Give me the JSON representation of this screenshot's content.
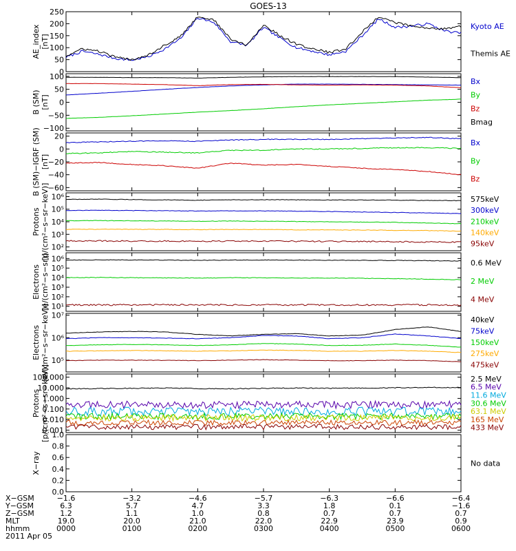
{
  "title": "GOES-13",
  "chart_data": [
    {
      "type": "line",
      "ylabel": [
        "AE_index",
        "[nT]"
      ],
      "ylim": [
        0,
        250
      ],
      "yscale": "linear",
      "yticks": [
        0,
        50,
        100,
        150,
        200,
        250
      ],
      "ytick_labels": [
        "0",
        "50",
        "100",
        "150",
        "200",
        "250"
      ],
      "series": [
        {
          "name": "Kyoto AE",
          "color": "#0000cc",
          "noise": 5,
          "values": [
            60,
            85,
            72,
            55,
            48,
            62,
            95,
            140,
            225,
            205,
            125,
            110,
            185,
            140,
            100,
            85,
            70,
            85,
            150,
            220,
            185,
            190,
            200,
            170,
            160
          ]
        },
        {
          "name": "Themis AE",
          "color": "#000000",
          "noise": 5,
          "values": [
            65,
            95,
            85,
            60,
            50,
            70,
            110,
            150,
            230,
            215,
            135,
            110,
            195,
            150,
            115,
            95,
            80,
            95,
            165,
            230,
            205,
            190,
            180,
            180,
            190
          ]
        }
      ]
    },
    {
      "type": "line",
      "ylabel": [
        "B (SM)",
        "[nT]"
      ],
      "ylim": [
        -110,
        110
      ],
      "yscale": "linear",
      "yticks": [
        -100,
        -50,
        0,
        50,
        100
      ],
      "ytick_labels": [
        "−100",
        "−50",
        "0",
        "50",
        "100"
      ],
      "series": [
        {
          "name": "Bx",
          "color": "#0000cc",
          "noise": 0.4,
          "values": [
            28,
            35,
            42,
            50,
            57,
            63,
            67,
            70,
            70,
            69,
            68,
            67,
            66
          ]
        },
        {
          "name": "By",
          "color": "#00cc00",
          "noise": 0.4,
          "values": [
            -62,
            -58,
            -52,
            -45,
            -38,
            -32,
            -25,
            -17,
            -10,
            -4,
            2,
            8,
            12
          ]
        },
        {
          "name": "Bz",
          "color": "#cc0000",
          "noise": 0.4,
          "values": [
            72,
            72,
            70,
            68,
            64,
            68,
            69,
            67,
            66,
            67,
            66,
            63,
            56
          ]
        },
        {
          "name": "Bmag",
          "color": "#000000",
          "noise": 0.4,
          "values": [
            96,
            96,
            95,
            95,
            93,
            96,
            98,
            99,
            99,
            99,
            99,
            97,
            95
          ]
        }
      ]
    },
    {
      "type": "line",
      "ylabel": [
        "B (SM)−IGRF (SM)",
        "[nT]"
      ],
      "ylim": [
        -65,
        25
      ],
      "yscale": "linear",
      "yticks": [
        -60,
        -40,
        -20,
        0,
        20
      ],
      "ytick_labels": [
        "−60",
        "−40",
        "−20",
        "0",
        "20"
      ],
      "series": [
        {
          "name": "Bx",
          "color": "#0000cc",
          "noise": 0.6,
          "values": [
            10,
            11,
            12,
            13,
            12,
            14,
            15,
            15,
            15,
            16,
            17,
            18,
            16
          ]
        },
        {
          "name": "By",
          "color": "#00cc00",
          "noise": 0.7,
          "values": [
            -7,
            -6,
            -4,
            -5,
            -6,
            -2,
            -2,
            0,
            0,
            1,
            2,
            2,
            1
          ]
        },
        {
          "name": "Bz",
          "color": "#cc0000",
          "noise": 0.6,
          "values": [
            -22,
            -21,
            -24,
            -26,
            -30,
            -22,
            -25,
            -24,
            -27,
            -30,
            -32,
            -35,
            -40
          ]
        }
      ]
    },
    {
      "type": "line",
      "ylabel": [
        "Protons",
        "[p/(cm²−s−sr−keV)]"
      ],
      "ylim": [
        50,
        2000000
      ],
      "yscale": "log",
      "yticks": [
        100,
        1000,
        10000,
        100000,
        1000000
      ],
      "ytick_labels": [
        "10²",
        "10³",
        "10⁴",
        "10⁵",
        "10⁶"
      ],
      "series": [
        {
          "name": "575keV",
          "color": "#000000",
          "noise": 0.02,
          "values": [
            600000,
            620000,
            580000,
            550000,
            520000,
            560000,
            570000,
            560000,
            540000,
            540000,
            520000,
            500000,
            480000
          ]
        },
        {
          "name": "300keV",
          "color": "#0000cc",
          "noise": 0.02,
          "values": [
            80000,
            82000,
            78000,
            75000,
            72000,
            74000,
            73000,
            70000,
            65000,
            60000,
            55000,
            50000,
            45000
          ]
        },
        {
          "name": "210keV",
          "color": "#00cc00",
          "noise": 0.02,
          "values": [
            12000,
            12500,
            12000,
            11500,
            11000,
            11500,
            11000,
            10500,
            10000,
            9500,
            9000,
            8000,
            7000
          ]
        },
        {
          "name": "140keV",
          "color": "#ffaa00",
          "noise": 0.02,
          "values": [
            2500,
            2550,
            2500,
            2450,
            2400,
            2450,
            2400,
            2300,
            2250,
            2200,
            2100,
            2000,
            1800
          ]
        },
        {
          "name": "95keV",
          "color": "#880000",
          "noise": 0.05,
          "values": [
            300,
            300,
            290,
            290,
            280,
            290,
            285,
            280,
            275,
            270,
            260,
            250,
            240
          ]
        }
      ]
    },
    {
      "type": "line",
      "ylabel": [
        "Electrons",
        "[e/(cm²−s−sr)]"
      ],
      "ylim": [
        3,
        4000000
      ],
      "yscale": "log",
      "yticks": [
        10,
        100,
        1000,
        10000,
        100000,
        1000000
      ],
      "ytick_labels": [
        "10¹",
        "10²",
        "10³",
        "10⁴",
        "10⁵",
        "10⁶"
      ],
      "series": [
        {
          "name": "0.6 MeV",
          "color": "#000000",
          "noise": 0.03,
          "values": [
            700000,
            720000,
            700000,
            680000,
            650000,
            700000,
            690000,
            680000,
            660000,
            650000,
            630000,
            600000,
            560000
          ]
        },
        {
          "name": "2 MeV",
          "color": "#00cc00",
          "noise": 0.03,
          "values": [
            10000,
            10500,
            10000,
            9500,
            9000,
            9800,
            9500,
            9200,
            9000,
            8500,
            8000,
            7000,
            6000
          ]
        },
        {
          "name": "4 MeV",
          "color": "#880000",
          "noise": 0.08,
          "values": [
            14,
            14,
            14,
            14,
            14,
            14,
            14,
            14,
            14,
            14,
            14,
            14,
            13
          ]
        }
      ]
    },
    {
      "type": "line",
      "ylabel": [
        "Electrons",
        "[e/(cm²−s−sr−keV)]"
      ],
      "ylim": [
        30000,
        12000000
      ],
      "yscale": "log",
      "yticks": [
        100000,
        1000000,
        10000000
      ],
      "ytick_labels": [
        "10⁵",
        "10⁶",
        "10⁷"
      ],
      "series": [
        {
          "name": "40keV",
          "color": "#000000",
          "noise": 0.01,
          "values": [
            1600000,
            1800000,
            1900000,
            1800000,
            1400000,
            1200000,
            1400000,
            1500000,
            1200000,
            1300000,
            2300000,
            3000000,
            1900000
          ]
        },
        {
          "name": "75keV",
          "color": "#0000cc",
          "noise": 0.01,
          "values": [
            900000,
            1000000,
            1000000,
            950000,
            900000,
            1000000,
            1250000,
            1200000,
            900000,
            1000000,
            1450000,
            1200000,
            900000
          ]
        },
        {
          "name": "150keV",
          "color": "#00cc00",
          "noise": 0.01,
          "values": [
            450000,
            480000,
            500000,
            480000,
            450000,
            480000,
            550000,
            520000,
            450000,
            460000,
            520000,
            460000,
            380000
          ]
        },
        {
          "name": "275keV",
          "color": "#ffaa00",
          "noise": 0.01,
          "values": [
            250000,
            260000,
            270000,
            260000,
            250000,
            260000,
            280000,
            270000,
            250000,
            250000,
            270000,
            250000,
            220000
          ]
        },
        {
          "name": "475keV",
          "color": "#880000",
          "noise": 0.01,
          "values": [
            95000,
            100000,
            100000,
            98000,
            96000,
            100000,
            105000,
            100000,
            95000,
            95000,
            100000,
            95000,
            85000
          ]
        }
      ]
    },
    {
      "type": "line",
      "ylabel": [
        "Protons",
        "[p/(cm²−s−sr−keV)]"
      ],
      "ylim": [
        0.0006,
        200
      ],
      "yscale": "log",
      "yticks": [
        0.001,
        0.01,
        0.1,
        1,
        10,
        100
      ],
      "ytick_labels": [
        "0.001",
        "0.010",
        "0.100",
        "1.000",
        "10.000",
        "100.000"
      ],
      "series": [
        {
          "name": "2.5 MeV",
          "color": "#000000",
          "noise": 0.04,
          "values": [
            8,
            8.5,
            9,
            9.5,
            8.5,
            8,
            9,
            9.5,
            9,
            9.5,
            10,
            10.5,
            11
          ]
        },
        {
          "name": "6.5 MeV",
          "color": "#5500aa",
          "noise": 0.35,
          "values": [
            0.25,
            0.25,
            0.25,
            0.25,
            0.25,
            0.25,
            0.25,
            0.25,
            0.25,
            0.25,
            0.25,
            0.25,
            0.25
          ]
        },
        {
          "name": "11.6 MeV",
          "color": "#00aadd",
          "noise": 0.4,
          "values": [
            0.06,
            0.06,
            0.06,
            0.06,
            0.06,
            0.06,
            0.06,
            0.06,
            0.06,
            0.06,
            0.06,
            0.06,
            0.06
          ]
        },
        {
          "name": "30.6 MeV",
          "color": "#00cc00",
          "noise": 0.3,
          "values": [
            0.02,
            0.02,
            0.02,
            0.02,
            0.02,
            0.02,
            0.02,
            0.02,
            0.02,
            0.02,
            0.02,
            0.02,
            0.02
          ]
        },
        {
          "name": "63.1 MeV",
          "color": "#cccc00",
          "noise": 0.3,
          "values": [
            0.015,
            0.015,
            0.015,
            0.015,
            0.015,
            0.015,
            0.015,
            0.015,
            0.015,
            0.015,
            0.015,
            0.015,
            0.015
          ]
        },
        {
          "name": "165 MeV",
          "color": "#cc4400",
          "noise": 0.25,
          "values": [
            0.005,
            0.005,
            0.005,
            0.005,
            0.005,
            0.005,
            0.005,
            0.005,
            0.005,
            0.005,
            0.005,
            0.005,
            0.005
          ]
        },
        {
          "name": "433 MeV",
          "color": "#880000",
          "noise": 0.25,
          "values": [
            0.002,
            0.002,
            0.002,
            0.002,
            0.002,
            0.002,
            0.002,
            0.002,
            0.002,
            0.002,
            0.002,
            0.002,
            0.002
          ]
        }
      ]
    },
    {
      "type": "line",
      "ylabel": [
        "X−ray",
        ""
      ],
      "ylim": [
        0,
        1
      ],
      "yscale": "linear",
      "yticks": [
        0,
        0.2,
        0.4,
        0.6,
        0.8,
        1.0
      ],
      "ytick_labels": [
        "0.0",
        "0.2",
        "0.4",
        "0.6",
        "0.8",
        "1.0"
      ],
      "series": [],
      "note": "No data"
    }
  ],
  "x_axis": {
    "time_ticks": [
      "0000",
      "0100",
      "0200",
      "0300",
      "0400",
      "0500",
      "0600"
    ],
    "rows": [
      {
        "label": "X−GSM",
        "values": [
          "−1.6",
          "−3.2",
          "−4.6",
          "−5.7",
          "−6.3",
          "−6.6",
          "−6.4"
        ]
      },
      {
        "label": "Y−GSM",
        "values": [
          "6.3",
          "5.7",
          "4.7",
          "3.3",
          "1.8",
          "0.1",
          "−1.6"
        ]
      },
      {
        "label": "Z−GSM",
        "values": [
          "1.2",
          "1.1",
          "1.0",
          "0.8",
          "0.7",
          "0.7",
          "0.7"
        ]
      },
      {
        "label": "MLT",
        "values": [
          "19.0",
          "20.0",
          "21.0",
          "22.0",
          "22.9",
          "23.9",
          "0.9"
        ]
      },
      {
        "label": "hhmm",
        "values": [
          "0000",
          "0100",
          "0200",
          "0300",
          "0400",
          "0500",
          "0600"
        ]
      }
    ],
    "date": "2011 Apr 05"
  }
}
